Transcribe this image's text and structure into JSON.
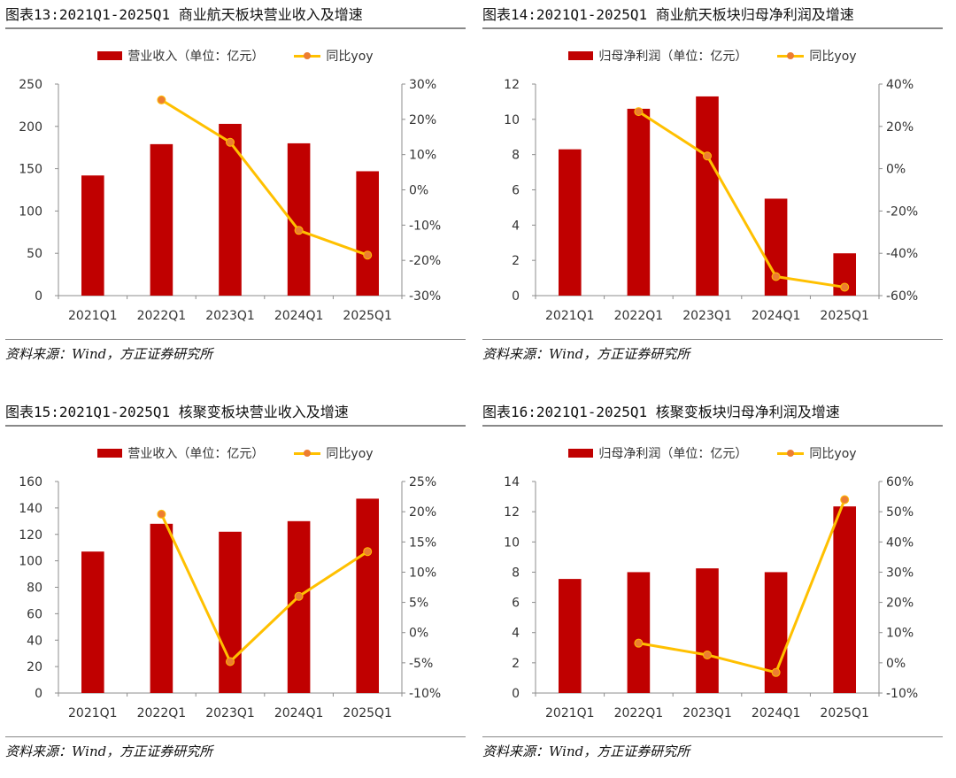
{
  "chart_data": [
    {
      "type": "bar",
      "title": "图表13:2021Q1-2025Q1 商业航天板块营业收入及增速",
      "source": "资料来源：Wind，方正证券研究所",
      "categories": [
        "2021Q1",
        "2022Q1",
        "2023Q1",
        "2024Q1",
        "2025Q1"
      ],
      "series": [
        {
          "name": "营业收入（单位：亿元）",
          "type": "bar",
          "axis": "left",
          "values": [
            142,
            179,
            203,
            180,
            147
          ]
        },
        {
          "name": "同比yoy",
          "type": "line",
          "axis": "right",
          "values": [
            null,
            0.255,
            0.135,
            -0.115,
            -0.185
          ]
        }
      ],
      "left_axis": {
        "ylim": [
          0,
          250
        ],
        "ticks": [
          0,
          50,
          100,
          150,
          200,
          250
        ],
        "tick_labels": [
          "0",
          "50",
          "100",
          "150",
          "200",
          "250"
        ]
      },
      "right_axis": {
        "ylim": [
          -0.3,
          0.3
        ],
        "ticks": [
          -0.3,
          -0.2,
          -0.1,
          0,
          0.1,
          0.2,
          0.3
        ],
        "tick_labels": [
          "-30%",
          "-20%",
          "-10%",
          "0%",
          "10%",
          "20%",
          "30%"
        ]
      },
      "legend": "top-center",
      "grid": false,
      "colors": {
        "bar": "#C00000",
        "line": "#FFC000",
        "marker": "#ED7D31"
      }
    },
    {
      "type": "bar",
      "title": "图表14:2021Q1-2025Q1 商业航天板块归母净利润及增速",
      "source": "资料来源：Wind，方正证券研究所",
      "categories": [
        "2021Q1",
        "2022Q1",
        "2023Q1",
        "2024Q1",
        "2025Q1"
      ],
      "series": [
        {
          "name": "归母净利润（单位：亿元）",
          "type": "bar",
          "axis": "left",
          "values": [
            8.3,
            10.6,
            11.3,
            5.5,
            2.4
          ]
        },
        {
          "name": "同比yoy",
          "type": "line",
          "axis": "right",
          "values": [
            null,
            0.27,
            0.06,
            -0.51,
            -0.56
          ]
        }
      ],
      "left_axis": {
        "ylim": [
          0,
          12
        ],
        "ticks": [
          0,
          2,
          4,
          6,
          8,
          10,
          12
        ],
        "tick_labels": [
          "0",
          "2",
          "4",
          "6",
          "8",
          "10",
          "12"
        ]
      },
      "right_axis": {
        "ylim": [
          -0.6,
          0.4
        ],
        "ticks": [
          -0.6,
          -0.4,
          -0.2,
          0,
          0.2,
          0.4
        ],
        "tick_labels": [
          "-60%",
          "-40%",
          "-20%",
          "0%",
          "20%",
          "40%"
        ]
      },
      "legend": "top-center",
      "grid": false,
      "colors": {
        "bar": "#C00000",
        "line": "#FFC000",
        "marker": "#ED7D31"
      }
    },
    {
      "type": "bar",
      "title": "图表15:2021Q1-2025Q1 核聚变板块营业收入及增速",
      "source": "资料来源：Wind，方正证券研究所",
      "categories": [
        "2021Q1",
        "2022Q1",
        "2023Q1",
        "2024Q1",
        "2025Q1"
      ],
      "series": [
        {
          "name": "营业收入（单位：亿元）",
          "type": "bar",
          "axis": "left",
          "values": [
            107,
            128,
            122,
            130,
            147
          ]
        },
        {
          "name": "同比yoy",
          "type": "line",
          "axis": "right",
          "values": [
            null,
            0.196,
            -0.048,
            0.06,
            0.134
          ]
        }
      ],
      "left_axis": {
        "ylim": [
          0,
          160
        ],
        "ticks": [
          0,
          20,
          40,
          60,
          80,
          100,
          120,
          140,
          160
        ],
        "tick_labels": [
          "0",
          "20",
          "40",
          "60",
          "80",
          "100",
          "120",
          "140",
          "160"
        ]
      },
      "right_axis": {
        "ylim": [
          -0.1,
          0.25
        ],
        "ticks": [
          -0.1,
          -0.05,
          0,
          0.05,
          0.1,
          0.15,
          0.2,
          0.25
        ],
        "tick_labels": [
          "-10%",
          "-5%",
          "0%",
          "5%",
          "10%",
          "15%",
          "20%",
          "25%"
        ]
      },
      "legend": "top-center",
      "grid": false,
      "colors": {
        "bar": "#C00000",
        "line": "#FFC000",
        "marker": "#ED7D31"
      }
    },
    {
      "type": "bar",
      "title": "图表16:2021Q1-2025Q1 核聚变板块归母净利润及增速",
      "source": "资料来源：Wind，方正证券研究所",
      "categories": [
        "2021Q1",
        "2022Q1",
        "2023Q1",
        "2024Q1",
        "2025Q1"
      ],
      "series": [
        {
          "name": "归母净利润（单位：亿元）",
          "type": "bar",
          "axis": "left",
          "values": [
            7.55,
            8.0,
            8.25,
            8.0,
            12.35
          ]
        },
        {
          "name": "同比yoy",
          "type": "line",
          "axis": "right",
          "values": [
            null,
            0.065,
            0.026,
            -0.032,
            0.54
          ]
        }
      ],
      "left_axis": {
        "ylim": [
          0,
          14
        ],
        "ticks": [
          0,
          2,
          4,
          6,
          8,
          10,
          12,
          14
        ],
        "tick_labels": [
          "0",
          "2",
          "4",
          "6",
          "8",
          "10",
          "12",
          "14"
        ]
      },
      "right_axis": {
        "ylim": [
          -0.1,
          0.6
        ],
        "ticks": [
          -0.1,
          0,
          0.1,
          0.2,
          0.3,
          0.4,
          0.5,
          0.6
        ],
        "tick_labels": [
          "-10%",
          "0%",
          "10%",
          "20%",
          "30%",
          "40%",
          "50%",
          "60%"
        ]
      },
      "legend": "top-center",
      "grid": false,
      "colors": {
        "bar": "#C00000",
        "line": "#FFC000",
        "marker": "#ED7D31"
      }
    }
  ]
}
